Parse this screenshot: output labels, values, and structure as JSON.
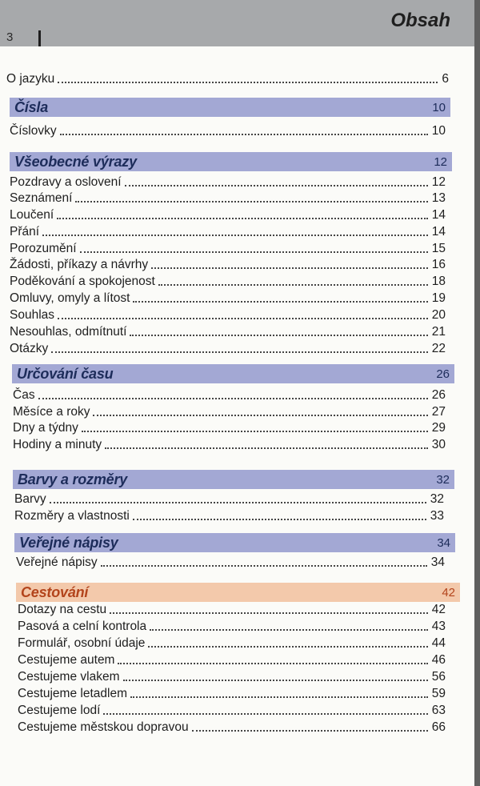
{
  "header": {
    "page_number": "3",
    "title": "Obsah"
  },
  "intro": {
    "label": "O jazyku",
    "page": "6"
  },
  "sections": [
    {
      "title": "Čísla",
      "page": "10",
      "color": "#a3a8d4",
      "entries": [
        {
          "label": "Číslovky",
          "page": "10"
        }
      ]
    },
    {
      "title": "Všeobecné výrazy",
      "page": "12",
      "color": "#a3a8d4",
      "entries": [
        {
          "label": "Pozdravy a oslovení",
          "page": "12"
        },
        {
          "label": "Seznámení",
          "page": "13"
        },
        {
          "label": "Loučení",
          "page": "14"
        },
        {
          "label": "Přání",
          "page": "14"
        },
        {
          "label": "Porozumění",
          "page": "15"
        },
        {
          "label": "Žádosti, příkazy a návrhy",
          "page": "16"
        },
        {
          "label": "Poděkování a spokojenost",
          "page": "18"
        },
        {
          "label": "Omluvy, omyly a lítost",
          "page": "19"
        },
        {
          "label": "Souhlas",
          "page": "20"
        },
        {
          "label": "Nesouhlas, odmítnutí",
          "page": "21"
        },
        {
          "label": "Otázky",
          "page": "22"
        }
      ]
    },
    {
      "title": "Určování času",
      "page": "26",
      "color": "#a3a8d4",
      "entries": [
        {
          "label": "Čas",
          "page": "26"
        },
        {
          "label": "Měsíce a roky",
          "page": "27"
        },
        {
          "label": "Dny a týdny",
          "page": "29"
        },
        {
          "label": "Hodiny a minuty",
          "page": "30"
        }
      ]
    },
    {
      "title": "Barvy a rozměry",
      "page": "32",
      "color": "#a3a8d4",
      "entries": [
        {
          "label": "Barvy",
          "page": "32"
        },
        {
          "label": "Rozměry a vlastnosti",
          "page": "33"
        }
      ]
    },
    {
      "title": "Veřejné nápisy",
      "page": "34",
      "color": "#a3a8d4",
      "entries": [
        {
          "label": "Veřejné nápisy",
          "page": "34"
        }
      ]
    },
    {
      "title": "Cestování",
      "page": "42",
      "color": "#f3c9ab",
      "entries": [
        {
          "label": "Dotazy na cestu",
          "page": "42"
        },
        {
          "label": "Pasová a celní kontrola",
          "page": "43"
        },
        {
          "label": "Formulář, osobní údaje",
          "page": "44"
        },
        {
          "label": "Cestujeme autem",
          "page": "46"
        },
        {
          "label": "Cestujeme vlakem",
          "page": "56"
        },
        {
          "label": "Cestujeme letadlem",
          "page": "59"
        },
        {
          "label": "Cestujeme lodí",
          "page": "63"
        },
        {
          "label": "Cestujeme městskou dopravou",
          "page": "66"
        }
      ]
    }
  ]
}
